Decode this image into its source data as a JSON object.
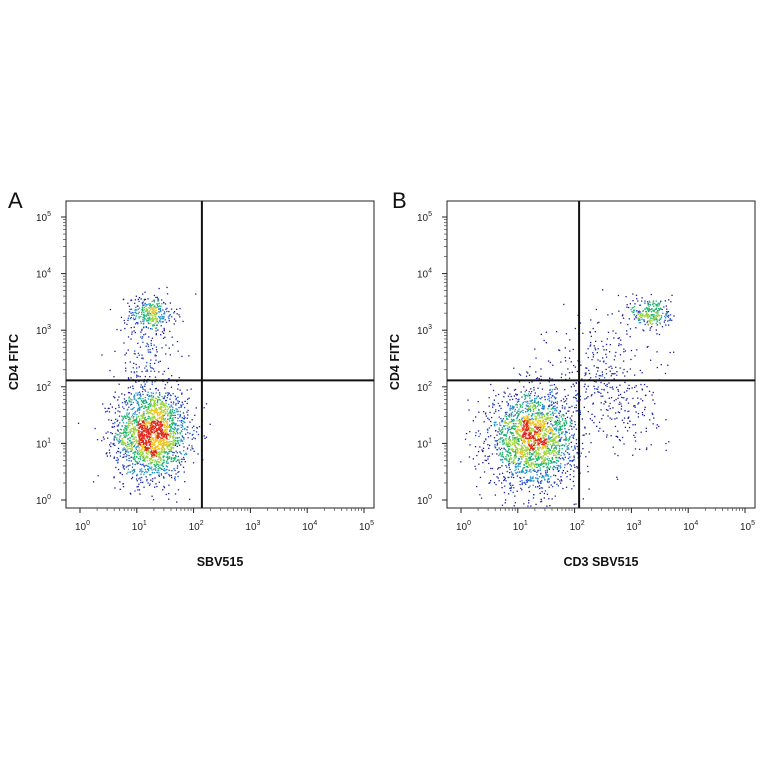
{
  "chart_data": [
    {
      "type": "scatter",
      "panel": "A",
      "xlabel": "SBV515",
      "ylabel": "CD4 FITC",
      "x_scale": "log",
      "y_scale": "log",
      "xlim": [
        1,
        100000
      ],
      "ylim": [
        1,
        100000
      ],
      "tick_values": [
        1,
        10,
        100,
        1000,
        10000,
        100000
      ],
      "tick_labels": [
        {
          "base": "10",
          "exp": "0"
        },
        {
          "base": "10",
          "exp": "1"
        },
        {
          "base": "10",
          "exp": "2"
        },
        {
          "base": "10",
          "exp": "3"
        },
        {
          "base": "10",
          "exp": "4"
        },
        {
          "base": "10",
          "exp": "5"
        }
      ],
      "quadrant_gate": {
        "x": 140,
        "y": 130
      },
      "colormap": "density (blue → green → yellow → red)",
      "populations": [
        {
          "cx": 18,
          "cy": 15,
          "sx": 0.32,
          "sy": 0.4,
          "n": 2100
        },
        {
          "cx": 17,
          "cy": 2000,
          "sx": 0.22,
          "sy": 0.16,
          "n": 320
        },
        {
          "cx": 14,
          "cy": 300,
          "sx": 0.25,
          "sy": 0.45,
          "n": 160
        }
      ]
    },
    {
      "type": "scatter",
      "panel": "B",
      "xlabel": "CD3 SBV515",
      "ylabel": "CD4 FITC",
      "x_scale": "log",
      "y_scale": "log",
      "xlim": [
        1,
        100000
      ],
      "ylim": [
        1,
        100000
      ],
      "tick_values": [
        1,
        10,
        100,
        1000,
        10000,
        100000
      ],
      "tick_labels": [
        {
          "base": "10",
          "exp": "0"
        },
        {
          "base": "10",
          "exp": "1"
        },
        {
          "base": "10",
          "exp": "2"
        },
        {
          "base": "10",
          "exp": "3"
        },
        {
          "base": "10",
          "exp": "4"
        },
        {
          "base": "10",
          "exp": "5"
        }
      ],
      "quadrant_gate": {
        "x": 120,
        "y": 130
      },
      "colormap": "density (blue → green → yellow → red)",
      "populations": [
        {
          "cx": 18,
          "cy": 12,
          "sx": 0.38,
          "sy": 0.42,
          "n": 2200
        },
        {
          "cx": 2200,
          "cy": 2000,
          "sx": 0.18,
          "sy": 0.15,
          "n": 260
        },
        {
          "cx": 250,
          "cy": 180,
          "sx": 0.45,
          "sy": 0.5,
          "n": 320
        },
        {
          "cx": 900,
          "cy": 30,
          "sx": 0.3,
          "sy": 0.35,
          "n": 90
        }
      ]
    }
  ]
}
